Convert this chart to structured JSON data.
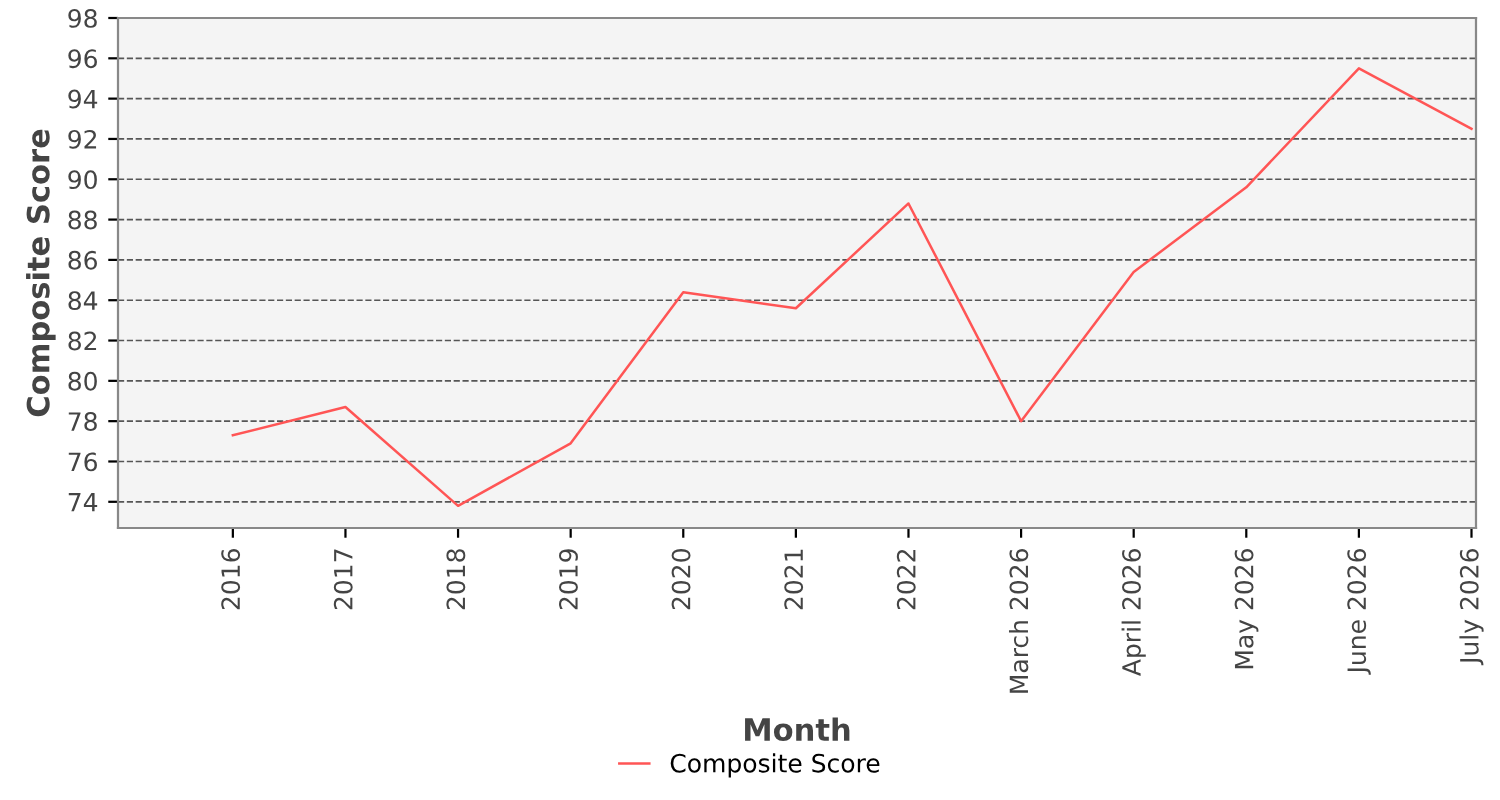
{
  "chart_data": {
    "type": "line",
    "xlabel": "Month",
    "ylabel": "Composite Score",
    "categories": [
      "2016",
      "2017",
      "2018",
      "2019",
      "2020",
      "2021",
      "2022",
      "March 2026",
      "April 2026",
      "May 2026",
      "June 2026",
      "July 2026"
    ],
    "series": [
      {
        "name": "Composite Score",
        "color": "#ff5555",
        "values": [
          77.3,
          78.7,
          73.8,
          76.9,
          84.4,
          83.6,
          88.8,
          78.0,
          85.4,
          89.6,
          95.5,
          92.5
        ]
      }
    ],
    "ylim": [
      72.7,
      98
    ],
    "yticks": [
      74,
      76,
      78,
      80,
      82,
      84,
      86,
      88,
      90,
      92,
      94,
      96,
      98
    ],
    "grid": "y",
    "legend": "bottom",
    "marker": "none",
    "line_style": "solid"
  }
}
